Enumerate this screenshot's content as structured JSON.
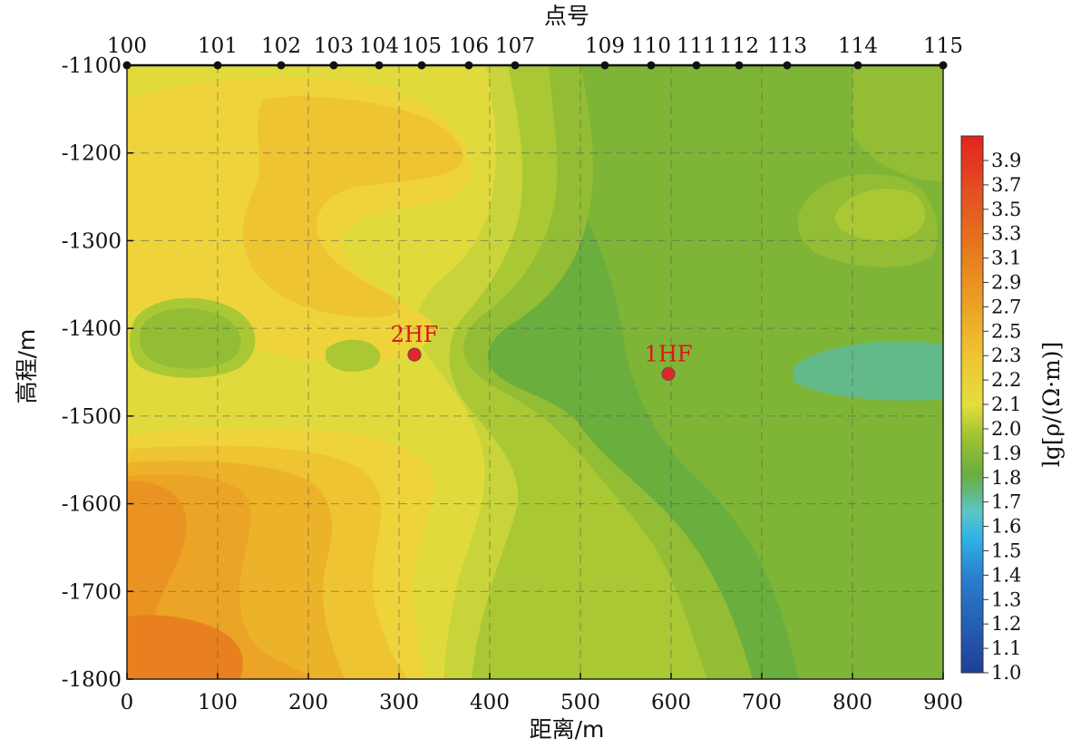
{
  "chart_data": {
    "type": "heatmap",
    "title": "",
    "xlabel": "距离/m",
    "ylabel": "高程/m",
    "top_axis_label": "点号",
    "colorbar_label": "lg[ρ/(Ω·m)]",
    "xlim": [
      0,
      900
    ],
    "ylim": [
      -1800,
      -1100
    ],
    "x_ticks": [
      0,
      100,
      200,
      300,
      400,
      500,
      600,
      700,
      800,
      900
    ],
    "y_ticks": [
      -1100,
      -1200,
      -1300,
      -1400,
      -1500,
      -1600,
      -1700,
      -1800
    ],
    "grid": true,
    "colorbar_range": [
      1.0,
      4.0
    ],
    "colorbar_ticks": [
      "1.0",
      "1.1",
      "1.2",
      "1.3",
      "1.4",
      "1.5",
      "1.6",
      "1.7",
      "1.8",
      "1.9",
      "2.0",
      "2.1",
      "2.2",
      "2.3",
      "2.5",
      "2.7",
      "2.9",
      "3.1",
      "3.3",
      "3.5",
      "3.7",
      "3.9"
    ],
    "stations": [
      {
        "label": "100",
        "x": 0
      },
      {
        "label": "101",
        "x": 100
      },
      {
        "label": "102",
        "x": 170
      },
      {
        "label": "103",
        "x": 228
      },
      {
        "label": "104",
        "x": 278
      },
      {
        "label": "105",
        "x": 325
      },
      {
        "label": "106",
        "x": 377
      },
      {
        "label": "107",
        "x": 428
      },
      {
        "label": "109",
        "x": 527
      },
      {
        "label": "110",
        "x": 578
      },
      {
        "label": "111",
        "x": 628
      },
      {
        "label": "112",
        "x": 675
      },
      {
        "label": "113",
        "x": 728
      },
      {
        "label": "114",
        "x": 806
      },
      {
        "label": "115",
        "x": 900
      }
    ],
    "annotations": [
      {
        "label": "2HF",
        "x": 317,
        "y": -1430
      },
      {
        "label": "1HF",
        "x": 597,
        "y": -1452
      }
    ],
    "field_colors": {
      "c18": "#62ba88",
      "c20": "#6aae3e",
      "c21": "#7eb537",
      "c22": "#92bd34",
      "c23": "#aac834",
      "c24": "#c8d43a",
      "c25": "#e1da3c",
      "c26": "#eed43a",
      "c27": "#efc432",
      "c28": "#ecb22a",
      "c29": "#eba426",
      "c30": "#ea9322",
      "c31": "#e8801f"
    },
    "marker_color": "#e3262a",
    "annotation_color": "#d7191c"
  }
}
